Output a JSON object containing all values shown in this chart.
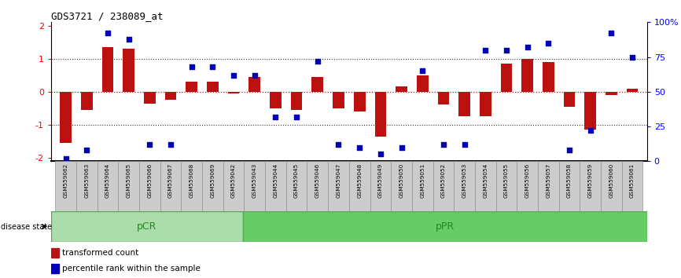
{
  "title": "GDS3721 / 238089_at",
  "samples": [
    "GSM559062",
    "GSM559063",
    "GSM559064",
    "GSM559065",
    "GSM559066",
    "GSM559067",
    "GSM559068",
    "GSM559069",
    "GSM559042",
    "GSM559043",
    "GSM559044",
    "GSM559045",
    "GSM559046",
    "GSM559047",
    "GSM559048",
    "GSM559049",
    "GSM559050",
    "GSM559051",
    "GSM559052",
    "GSM559053",
    "GSM559054",
    "GSM559055",
    "GSM559056",
    "GSM559057",
    "GSM559058",
    "GSM559059",
    "GSM559060",
    "GSM559061"
  ],
  "bar_values": [
    -1.55,
    -0.55,
    1.35,
    1.3,
    -0.35,
    -0.25,
    0.3,
    0.3,
    -0.05,
    0.45,
    -0.5,
    -0.55,
    0.45,
    -0.5,
    -0.6,
    -1.35,
    0.15,
    0.5,
    -0.38,
    -0.75,
    -0.75,
    0.85,
    1.0,
    0.9,
    -0.45,
    -1.15,
    -0.1,
    0.1
  ],
  "dot_values": [
    2,
    8,
    92,
    88,
    12,
    12,
    68,
    68,
    62,
    62,
    32,
    32,
    72,
    12,
    10,
    5,
    10,
    65,
    12,
    12,
    80,
    80,
    82,
    85,
    8,
    22,
    92,
    75
  ],
  "pCR_count": 9,
  "pPR_count": 19,
  "ylim": [
    -2.1,
    2.1
  ],
  "yticks_left": [
    -2,
    -1,
    0,
    1,
    2
  ],
  "yticks_right": [
    0,
    25,
    50,
    75,
    100
  ],
  "bar_color": "#BB1111",
  "dot_color": "#0000BB",
  "zero_line_color": "#CC1111",
  "dotted_line_color": "#333333",
  "pCR_color": "#AADDAA",
  "pPR_color": "#66CC66",
  "label_bg_color": "#CCCCCC",
  "legend_bar_label": "transformed count",
  "legend_dot_label": "percentile rank within the sample",
  "disease_state_label": "disease state"
}
